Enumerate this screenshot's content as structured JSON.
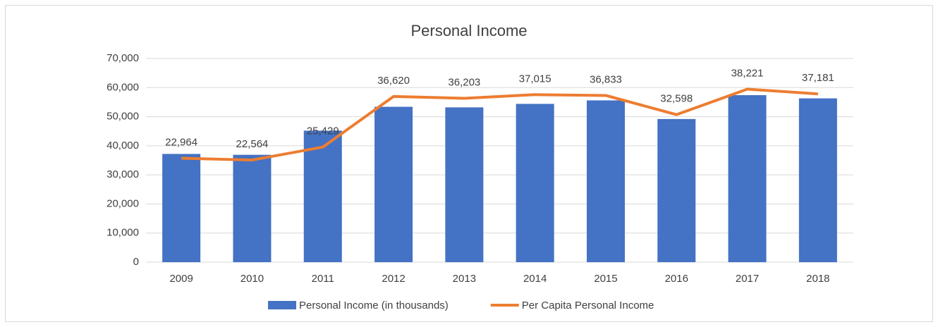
{
  "chart_data": {
    "type": "bar_line",
    "title": "Personal Income",
    "categories": [
      "2009",
      "2010",
      "2011",
      "2012",
      "2013",
      "2014",
      "2015",
      "2016",
      "2017",
      "2018"
    ],
    "series": [
      {
        "name": "Personal Income (in thousands)",
        "type": "bar",
        "color": "#4472c4",
        "values": [
          37200,
          36900,
          45200,
          53400,
          53200,
          54400,
          55600,
          49200,
          57400,
          56300
        ]
      },
      {
        "name": "Per Capita Personal Income",
        "type": "line",
        "axis": "y2",
        "color": "#ed7d31",
        "values": [
          22964,
          22564,
          25429,
          36620,
          36203,
          37015,
          36833,
          32598,
          38221,
          37181
        ],
        "value_labels": [
          "22,964",
          "22,564",
          "25,429",
          "36,620",
          "36,203",
          "37,015",
          "36,833",
          "32,598",
          "38,221",
          "37,181"
        ]
      }
    ],
    "ylim": [
      0,
      70000
    ],
    "yticks": [
      0,
      {
        "value": 10000,
        "label": "10,000"
      },
      {
        "value": 20000,
        "label": "20,000"
      },
      {
        "value": 30000,
        "label": "30,000"
      },
      {
        "value": 40000,
        "label": "40,000"
      },
      {
        "value": 50000,
        "label": "50,000"
      },
      {
        "value": 60000,
        "label": "60,000"
      },
      {
        "value": 70000,
        "label": "70,000"
      }
    ],
    "y2lim": [
      0,
      45000
    ],
    "grid": true,
    "legend": "bottom"
  }
}
